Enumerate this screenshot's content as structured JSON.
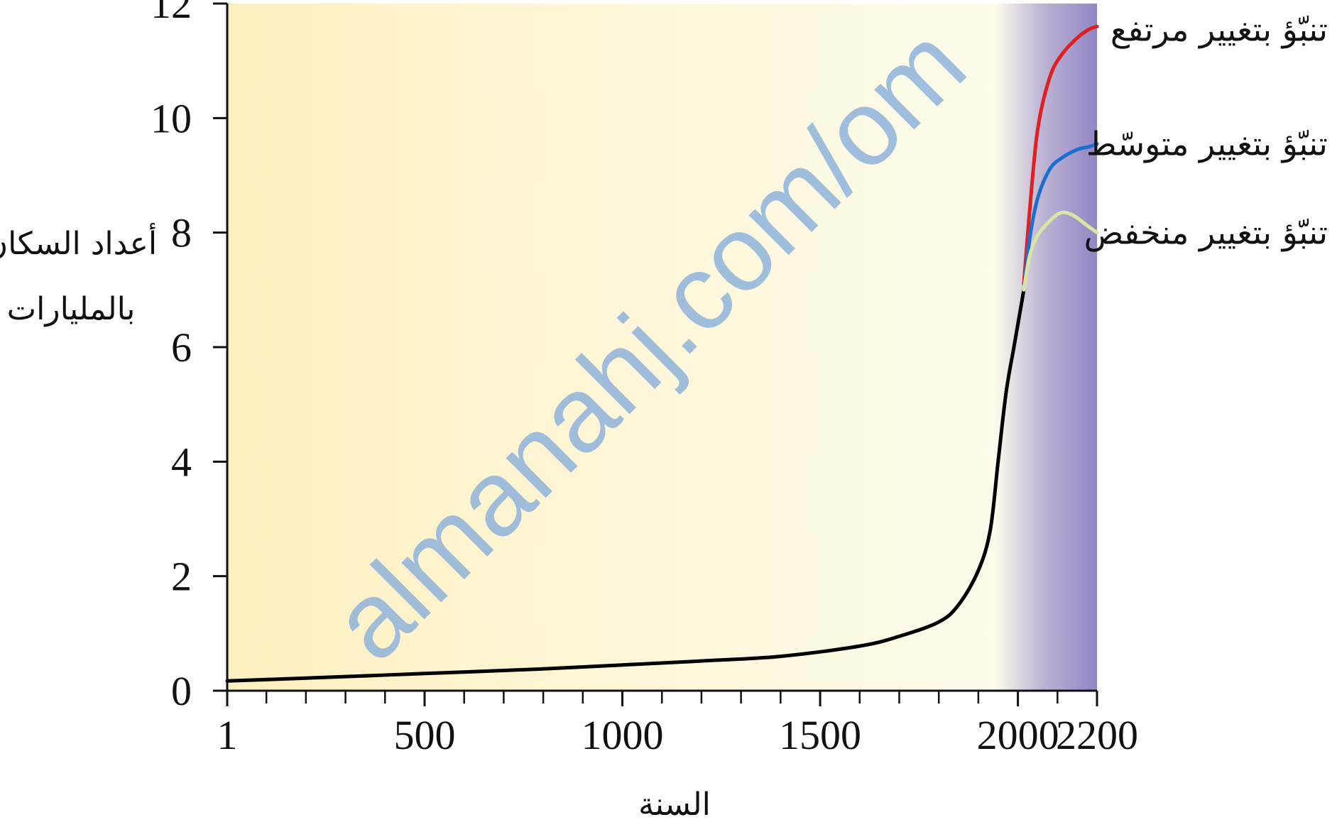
{
  "chart_data": {
    "type": "line",
    "ylabel_line1": "أعداد السكان",
    "ylabel_line2": "بالمليارات",
    "xlabel": "السنة",
    "xlim": [
      1,
      2200
    ],
    "ylim": [
      0,
      12
    ],
    "x_ticks": [
      1,
      500,
      1000,
      1500,
      2000,
      2200
    ],
    "y_ticks": [
      0,
      2,
      4,
      6,
      8,
      10,
      12
    ],
    "x_minor_step": 100,
    "projection_start": 2015,
    "series": [
      {
        "color": "#000000",
        "x": [
          1,
          200,
          500,
          800,
          1000,
          1200,
          1400,
          1600,
          1700,
          1800,
          1850,
          1900,
          1930,
          1950,
          1970,
          1990,
          2000,
          2010,
          2015
        ],
        "y": [
          0.17,
          0.22,
          0.3,
          0.38,
          0.45,
          0.52,
          0.6,
          0.78,
          0.95,
          1.2,
          1.5,
          2.1,
          2.8,
          4.0,
          5.2,
          6.0,
          6.4,
          6.8,
          7.0
        ]
      },
      {
        "name": "تنبّؤ بتغيير مرتفع",
        "color": "#e02020",
        "x": [
          2015,
          2030,
          2050,
          2080,
          2110,
          2150,
          2180,
          2200
        ],
        "y": [
          7.1,
          8.4,
          9.8,
          10.7,
          11.1,
          11.4,
          11.55,
          11.6
        ]
      },
      {
        "name": "تنبّؤ بتغيير متوسّط",
        "color": "#1a6fd0",
        "x": [
          2015,
          2030,
          2050,
          2080,
          2110,
          2150,
          2180,
          2200
        ],
        "y": [
          7.0,
          7.9,
          8.6,
          9.1,
          9.3,
          9.45,
          9.5,
          9.55
        ]
      },
      {
        "name": "تنبّؤ بتغيير منخفض",
        "color": "#d8e6a0",
        "x": [
          2015,
          2030,
          2050,
          2080,
          2110,
          2140,
          2170,
          2200
        ],
        "y": [
          7.0,
          7.6,
          7.95,
          8.2,
          8.35,
          8.3,
          8.15,
          8.0
        ]
      }
    ],
    "legend": [
      "تنبّؤ بتغيير مرتفع",
      "تنبّؤ بتغيير متوسّط",
      "تنبّؤ بتغيير منخفض"
    ],
    "watermark": "almanahj.com/om",
    "colors": {
      "bg_left": "#fdf0c0",
      "bg_right": "#fffdf2",
      "projection_band": "#9286c4"
    }
  }
}
